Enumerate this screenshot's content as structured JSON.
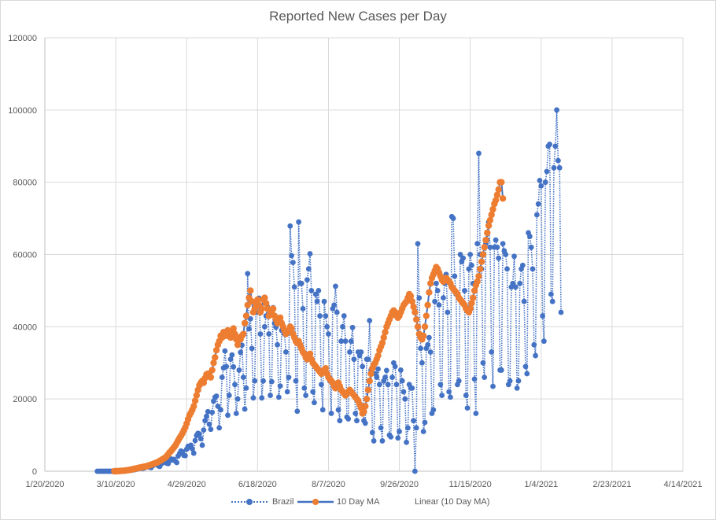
{
  "chart_data": {
    "type": "line",
    "title": "Reported New Cases per Day",
    "xlabel": "",
    "ylabel": "",
    "ylim": [
      0,
      120000
    ],
    "yticks": [
      "0",
      "20000",
      "40000",
      "60000",
      "80000",
      "100000",
      "120000"
    ],
    "xticks": [
      "1/20/2020",
      "3/10/2020",
      "4/29/2020",
      "6/18/2020",
      "8/7/2020",
      "9/26/2020",
      "11/15/2020",
      "1/4/2021",
      "2/23/2021",
      "4/14/2021"
    ],
    "xlim_days_from_2020_01_20": [
      0,
      450
    ],
    "grid": true,
    "legend_position": "bottom",
    "colors": {
      "brazil": "#4472C4",
      "ma_marker": "#ED7D31",
      "ma_line": "#4472C4",
      "grid": "#d9d9d9",
      "text": "#595959"
    },
    "series": [
      {
        "name": "Brazil",
        "style": "dotted-line-circle-markers",
        "start_day": 37,
        "values": [
          0,
          0,
          0,
          0,
          0,
          0,
          0,
          0,
          0,
          0,
          0,
          0,
          0,
          10,
          20,
          30,
          40,
          60,
          90,
          120,
          150,
          200,
          250,
          300,
          300,
          350,
          400,
          500,
          600,
          700,
          800,
          1100,
          800,
          900,
          1100,
          1200,
          1300,
          1100,
          1000,
          1500,
          1800,
          1900,
          1800,
          1500,
          1300,
          2000,
          2300,
          2700,
          2500,
          2200,
          2100,
          2900,
          3400,
          3100,
          3300,
          2800,
          2400,
          4200,
          4900,
          5600,
          5400,
          4400,
          4300,
          6100,
          6900,
          6700,
          7200,
          6200,
          5000,
          8500,
          9900,
          10500,
          10300,
          9000,
          7200,
          11400,
          14000,
          15200,
          16500,
          13000,
          11600,
          16300,
          19400,
          20500,
          20800,
          18000,
          12000,
          17000,
          26000,
          28600,
          33300,
          29000,
          15500,
          21000,
          31000,
          32200,
          28900,
          24000,
          16000,
          20000,
          28000,
          32900,
          34900,
          26000,
          17200,
          23000,
          54700,
          39400,
          42200,
          34000,
          20300,
          25000,
          46800,
          44000,
          47900,
          38000,
          20300,
          25000,
          40000,
          43000,
          45500,
          38000,
          21000,
          24800,
          45300,
          41000,
          39900,
          35000,
          20500,
          23600,
          39000,
          40000,
          38000,
          33000,
          22000,
          26000,
          67900,
          59700,
          57800,
          51000,
          25000,
          16600,
          69000,
          52000,
          52000,
          45000,
          23000,
          21000,
          53000,
          56000,
          60200,
          50000,
          22000,
          19000,
          49000,
          47000,
          50000,
          43000,
          24000,
          17000,
          47000,
          43000,
          40000,
          38000,
          25000,
          16000,
          45000,
          46000,
          51200,
          44000,
          17000,
          14000,
          36000,
          40000,
          43000,
          36000,
          15000,
          14500,
          33000,
          36000,
          39800,
          31000,
          16000,
          14000,
          33000,
          32000,
          33000,
          29000,
          14000,
          13300,
          31000,
          31000,
          41700,
          28000,
          10700,
          8400,
          27000,
          26000,
          28300,
          24000,
          12000,
          8400,
          25000,
          26000,
          27900,
          24000,
          10000,
          9500,
          26000,
          30000,
          29000,
          24000,
          9200,
          11000,
          28000,
          25000,
          22000,
          20000,
          8000,
          12000,
          24000,
          23000,
          23000,
          14000,
          0,
          12000,
          63000,
          48000,
          34000,
          30000,
          11000,
          13500,
          34000,
          35000,
          37000,
          33000,
          16000,
          17000,
          47000,
          52000,
          50000,
          46000,
          24000,
          21000,
          48000,
          52000,
          54500,
          44000,
          22000,
          20500,
          70500,
          70000,
          54000,
          49000,
          24000,
          25000,
          60000,
          58000,
          59000,
          50000,
          21000,
          17500,
          56000,
          60000,
          57000,
          52000,
          25500,
          16000,
          63000,
          88000,
          60000,
          56000,
          30000,
          26000,
          63000,
          64000,
          69000,
          62000,
          33000,
          23500,
          62000,
          64000,
          62000,
          59000,
          28000,
          28000,
          63000,
          61000,
          60000,
          56000,
          24000,
          25000,
          51000,
          52000,
          59500,
          51000,
          23000,
          25000,
          52000,
          56000,
          57000,
          47000,
          29000,
          27000,
          66000,
          65000,
          62000,
          56000,
          35000,
          32000,
          71000,
          74000,
          80500,
          79000,
          43000,
          36000,
          80000,
          83000,
          90000,
          90500,
          49000,
          47000,
          84000,
          90000,
          100000,
          86000,
          84000,
          44000
        ]
      },
      {
        "name": "10 Day MA",
        "style": "solid-line-circle-markers",
        "start_day": 49,
        "values": [
          0,
          0,
          20,
          40,
          60,
          90,
          120,
          160,
          210,
          260,
          310,
          380,
          450,
          560,
          640,
          720,
          840,
          920,
          1000,
          1100,
          1160,
          1250,
          1330,
          1420,
          1560,
          1680,
          1800,
          1950,
          2100,
          2250,
          2400,
          2600,
          2850,
          3050,
          3300,
          3550,
          3800,
          4200,
          4700,
          5200,
          5600,
          6100,
          6600,
          7100,
          7800,
          8500,
          9200,
          9800,
          10500,
          11300,
          12100,
          13200,
          14400,
          15500,
          16200,
          17000,
          18000,
          19500,
          21000,
          22500,
          23800,
          24500,
          25000,
          24500,
          25800,
          26800,
          27000,
          26500,
          26000,
          28000,
          30000,
          31500,
          33500,
          35000,
          36000,
          37500,
          37000,
          38500,
          38000,
          37500,
          39000,
          38000,
          37000,
          38000,
          39500,
          38000,
          36500,
          35000,
          37000,
          36500,
          37500,
          38000,
          41000,
          43000,
          46000,
          48000,
          50000,
          47000,
          44000,
          45000,
          46500,
          47500,
          46000,
          44000,
          45000,
          47500,
          48000,
          46500,
          45000,
          43000,
          43500,
          44000,
          45000,
          43000,
          42000,
          41000,
          41500,
          42500,
          41000,
          40000,
          39000,
          38000,
          38500,
          39000,
          40000,
          39500,
          38000,
          37000,
          36000,
          35500,
          36000,
          35000,
          34000,
          33000,
          32500,
          31500,
          31000,
          32000,
          32500,
          31000,
          30000,
          29500,
          29000,
          28500,
          28000,
          27500,
          27000,
          27500,
          28000,
          28500,
          27000,
          26000,
          25500,
          25000,
          24500,
          23500,
          23000,
          24000,
          24500,
          23500,
          22500,
          22000,
          21500,
          21000,
          21500,
          22000,
          22500,
          22000,
          21500,
          21000,
          20500,
          20000,
          19500,
          18500,
          17500,
          16000,
          16500,
          18000,
          20000,
          22500,
          25000,
          27000,
          28500,
          29500,
          30000,
          31000,
          32000,
          33500,
          34500,
          35500,
          37000,
          38500,
          40000,
          41000,
          42000,
          43000,
          44000,
          44500,
          44000,
          43000,
          42500,
          43000,
          44000,
          45000,
          46000,
          46500,
          47000,
          48000,
          49000,
          48500,
          47000,
          45500,
          44000,
          42000,
          40000,
          38000,
          37000,
          36500,
          37500,
          40000,
          43000,
          46000,
          49500,
          52000,
          53500,
          54500,
          55500,
          56500,
          56000,
          55000,
          54000,
          53000,
          52500,
          53000,
          53500,
          53000,
          52500,
          52000,
          51000,
          50500,
          50000,
          49500,
          49000,
          48000,
          47500,
          47000,
          46500,
          46000,
          45000,
          44500,
          44000,
          45000,
          46500,
          48000,
          50000,
          51500,
          52500,
          54000,
          56000,
          58000,
          60000,
          62000,
          64000,
          66000,
          68000,
          69500,
          71000,
          72500,
          74000,
          75000,
          76500,
          78000,
          80000,
          80000,
          75500
        ]
      },
      {
        "name": "Linear (10 Day MA)",
        "style": "trendline-hidden",
        "values": []
      }
    ]
  },
  "legend": {
    "items": [
      "Brazil",
      "10 Day MA",
      "Linear (10 Day MA)"
    ]
  }
}
